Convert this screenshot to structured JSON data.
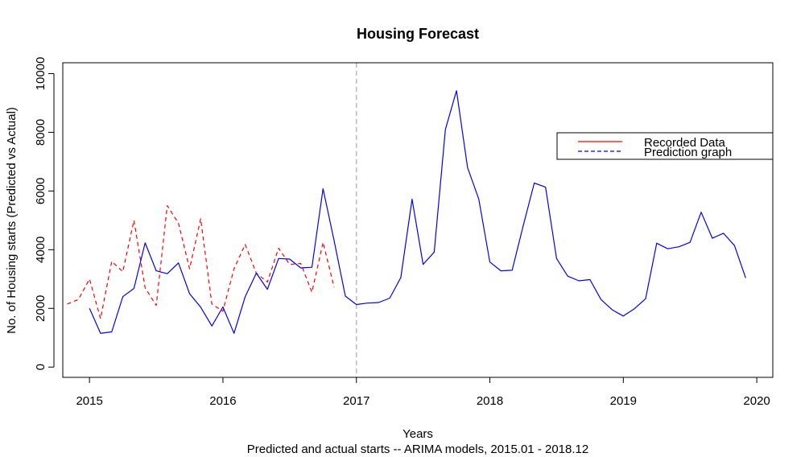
{
  "chart_data": {
    "type": "line",
    "title": "Housing Forecast",
    "xlabel": "Years",
    "subtitle": "Predicted and actual starts -- ARIMA models, 2015.01 - 2018.12",
    "ylabel": "No. of Housing starts (Predicted vs Actual)",
    "xlim": [
      2014.8,
      2020.12
    ],
    "ylim": [
      -350,
      10370
    ],
    "x_ticks": [
      2015,
      2016,
      2017,
      2018,
      2019,
      2020
    ],
    "x_tick_labels": [
      "2015",
      "2016",
      "2017",
      "2018",
      "2019",
      "2020"
    ],
    "y_ticks": [
      0,
      2000,
      4000,
      6000,
      8000,
      10000
    ],
    "y_tick_labels": [
      "0",
      "2000",
      "4000",
      "6000",
      "8000",
      "10000"
    ],
    "vline": {
      "x": 2017,
      "style": "dashed",
      "color": "#bbbbbb"
    },
    "legend": {
      "position": "top-right",
      "entries": [
        {
          "label": "Recorded Data",
          "color": "#ff0000",
          "style": "solid"
        },
        {
          "label": "Prediction graph",
          "color": "#0000ff",
          "style": "dashed"
        }
      ]
    },
    "series": [
      {
        "color": "#ff0000",
        "style": "dashed",
        "x": [
          2014.833,
          2014.917,
          2015.0,
          2015.083,
          2015.167,
          2015.25,
          2015.333,
          2015.417,
          2015.5,
          2015.583,
          2015.667,
          2015.75,
          2015.833,
          2015.917,
          2016.0,
          2016.083,
          2016.167,
          2016.25,
          2016.333,
          2016.417,
          2016.5,
          2016.583,
          2016.667,
          2016.75,
          2016.833
        ],
        "values": [
          2150,
          2300,
          3000,
          1650,
          3600,
          3250,
          5000,
          2700,
          2100,
          5500,
          4900,
          3350,
          5050,
          2150,
          1900,
          3350,
          4180,
          3200,
          2900,
          4050,
          3500,
          3530,
          2550,
          4250,
          2720
        ]
      },
      {
        "color": "#0000ff",
        "style": "solid",
        "x": [
          2015.0,
          2015.083,
          2015.167,
          2015.25,
          2015.333,
          2015.417,
          2015.5,
          2015.583,
          2015.667,
          2015.75,
          2015.833,
          2015.917,
          2016.0,
          2016.083,
          2016.167,
          2016.25,
          2016.333,
          2016.417,
          2016.5,
          2016.583,
          2016.667,
          2016.75,
          2016.833,
          2016.917,
          2017.0,
          2017.083,
          2017.167,
          2017.25,
          2017.333,
          2017.417,
          2017.5,
          2017.583,
          2017.667,
          2017.75,
          2017.833,
          2017.917,
          2018.0,
          2018.083,
          2018.167,
          2018.25,
          2018.333,
          2018.417,
          2018.5,
          2018.583,
          2018.667,
          2018.75,
          2018.833,
          2018.917,
          2019.0,
          2019.083,
          2019.167,
          2019.25,
          2019.333,
          2019.417,
          2019.5,
          2019.583,
          2019.667,
          2019.75,
          2019.833,
          2019.917
        ],
        "values": [
          2000,
          1150,
          1200,
          2400,
          2680,
          4230,
          3280,
          3180,
          3550,
          2500,
          2040,
          1400,
          2050,
          1150,
          2400,
          3200,
          2650,
          3700,
          3680,
          3380,
          3400,
          6080,
          4300,
          2420,
          2130,
          2180,
          2200,
          2350,
          3050,
          5720,
          3500,
          3920,
          8100,
          9420,
          6800,
          5720,
          3580,
          3280,
          3300,
          4820,
          6270,
          6130,
          3700,
          3100,
          2940,
          2980,
          2300,
          1950,
          1740,
          1990,
          2330,
          4220,
          4030,
          4100,
          4250,
          5280,
          4390,
          4560,
          4140,
          3040
        ]
      }
    ]
  }
}
